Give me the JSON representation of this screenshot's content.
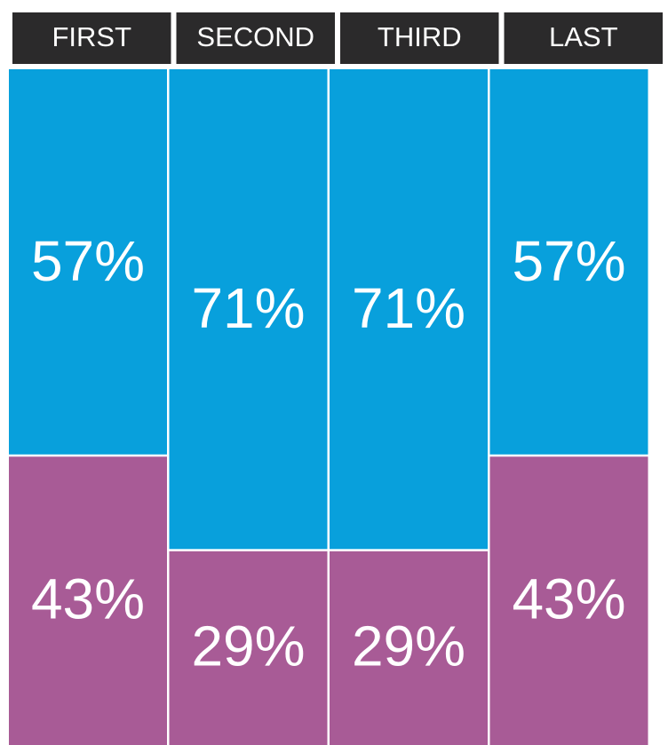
{
  "chart_data": {
    "type": "bar",
    "stacked": true,
    "categories": [
      "FIRST",
      "SECOND",
      "THIRD",
      "LAST"
    ],
    "series": [
      {
        "color": "#08a0dc",
        "values": [
          57,
          71,
          71,
          57
        ],
        "value_labels": [
          "57%",
          "71%",
          "71%",
          "57%"
        ]
      },
      {
        "color": "#a85b96",
        "values": [
          43,
          29,
          29,
          43
        ],
        "value_labels": [
          "43%",
          "29%",
          "29%",
          "43%"
        ]
      }
    ]
  }
}
